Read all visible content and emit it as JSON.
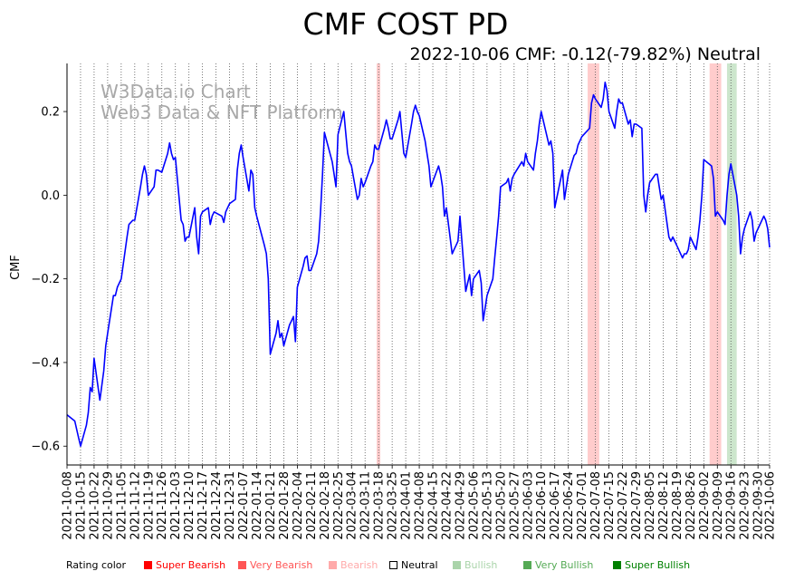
{
  "chart_data": {
    "type": "line",
    "title": "CMF COST PD",
    "subtitle": "2022-10-06 CMF: -0.12(-79.82%) Neutral",
    "ylabel": "CMF",
    "xlabel": "",
    "ylim": [
      -0.645,
      0.315
    ],
    "yticks": [
      -0.6,
      -0.4,
      -0.2,
      0.0,
      0.2
    ],
    "ytick_labels": [
      "−0.6",
      "−0.4",
      "−0.2",
      "0.0",
      "0.2"
    ],
    "date_start": "2021-10-08",
    "date_end": "2022-10-06",
    "xtick_labels": [
      "2021-10-08",
      "2021-10-15",
      "2021-10-22",
      "2021-10-29",
      "2021-11-05",
      "2021-11-12",
      "2021-11-19",
      "2021-11-26",
      "2021-12-03",
      "2021-12-10",
      "2021-12-17",
      "2021-12-24",
      "2021-12-31",
      "2022-01-07",
      "2022-01-14",
      "2022-01-21",
      "2022-01-28",
      "2022-02-04",
      "2022-02-11",
      "2022-02-18",
      "2022-02-25",
      "2022-03-04",
      "2022-03-11",
      "2022-03-18",
      "2022-03-25",
      "2022-04-01",
      "2022-04-08",
      "2022-04-15",
      "2022-04-22",
      "2022-04-29",
      "2022-05-06",
      "2022-05-13",
      "2022-05-20",
      "2022-05-27",
      "2022-06-03",
      "2022-06-10",
      "2022-06-17",
      "2022-06-24",
      "2022-07-01",
      "2022-07-08",
      "2022-07-15",
      "2022-07-22",
      "2022-07-29",
      "2022-08-05",
      "2022-08-12",
      "2022-08-19",
      "2022-08-26",
      "2022-09-02",
      "2022-09-09",
      "2022-09-16",
      "2022-09-23",
      "2022-09-30",
      "2022-10-06"
    ],
    "grid": "vertical dotted at weekly ticks",
    "series": [
      {
        "name": "CMF",
        "color": "#0000ff",
        "points": [
          [
            "2021-10-08",
            -0.525
          ],
          [
            "2021-10-12",
            -0.54
          ],
          [
            "2021-10-14",
            -0.58
          ],
          [
            "2021-10-15",
            -0.6
          ],
          [
            "2021-10-18",
            -0.55
          ],
          [
            "2021-10-19",
            -0.52
          ],
          [
            "2021-10-20",
            -0.46
          ],
          [
            "2021-10-21",
            -0.47
          ],
          [
            "2021-10-22",
            -0.39
          ],
          [
            "2021-10-25",
            -0.49
          ],
          [
            "2021-10-27",
            -0.42
          ],
          [
            "2021-10-28",
            -0.36
          ],
          [
            "2021-10-29",
            -0.33
          ],
          [
            "2021-11-01",
            -0.24
          ],
          [
            "2021-11-02",
            -0.24
          ],
          [
            "2021-11-03",
            -0.22
          ],
          [
            "2021-11-05",
            -0.2
          ],
          [
            "2021-11-08",
            -0.1
          ],
          [
            "2021-11-09",
            -0.07
          ],
          [
            "2021-11-11",
            -0.06
          ],
          [
            "2021-11-12",
            -0.06
          ],
          [
            "2021-11-15",
            0.02
          ],
          [
            "2021-11-16",
            0.05
          ],
          [
            "2021-11-17",
            0.07
          ],
          [
            "2021-11-18",
            0.05
          ],
          [
            "2021-11-19",
            0.0
          ],
          [
            "2021-11-22",
            0.02
          ],
          [
            "2021-11-23",
            0.06
          ],
          [
            "2021-11-24",
            0.06
          ],
          [
            "2021-11-26",
            0.055
          ],
          [
            "2021-11-29",
            0.1
          ],
          [
            "2021-11-30",
            0.125
          ],
          [
            "2021-12-01",
            0.1
          ],
          [
            "2021-12-02",
            0.085
          ],
          [
            "2021-12-03",
            0.09
          ],
          [
            "2021-12-06",
            -0.06
          ],
          [
            "2021-12-07",
            -0.07
          ],
          [
            "2021-12-08",
            -0.11
          ],
          [
            "2021-12-09",
            -0.1
          ],
          [
            "2021-12-10",
            -0.1
          ],
          [
            "2021-12-13",
            -0.03
          ],
          [
            "2021-12-14",
            -0.1
          ],
          [
            "2021-12-15",
            -0.14
          ],
          [
            "2021-12-16",
            -0.05
          ],
          [
            "2021-12-17",
            -0.04
          ],
          [
            "2021-12-20",
            -0.03
          ],
          [
            "2021-12-21",
            -0.07
          ],
          [
            "2021-12-22",
            -0.05
          ],
          [
            "2021-12-23",
            -0.04
          ],
          [
            "2021-12-27",
            -0.05
          ],
          [
            "2021-12-28",
            -0.065
          ],
          [
            "2021-12-29",
            -0.04
          ],
          [
            "2021-12-30",
            -0.03
          ],
          [
            "2021-12-31",
            -0.02
          ],
          [
            "2022-01-03",
            -0.01
          ],
          [
            "2022-01-04",
            0.06
          ],
          [
            "2022-01-05",
            0.1
          ],
          [
            "2022-01-06",
            0.12
          ],
          [
            "2022-01-07",
            0.09
          ],
          [
            "2022-01-10",
            0.01
          ],
          [
            "2022-01-11",
            0.06
          ],
          [
            "2022-01-12",
            0.05
          ],
          [
            "2022-01-13",
            -0.03
          ],
          [
            "2022-01-14",
            -0.05
          ],
          [
            "2022-01-18",
            -0.12
          ],
          [
            "2022-01-19",
            -0.14
          ],
          [
            "2022-01-20",
            -0.2
          ],
          [
            "2022-01-21",
            -0.38
          ],
          [
            "2022-01-24",
            -0.33
          ],
          [
            "2022-01-25",
            -0.3
          ],
          [
            "2022-01-26",
            -0.34
          ],
          [
            "2022-01-27",
            -0.33
          ],
          [
            "2022-01-28",
            -0.36
          ],
          [
            "2022-01-31",
            -0.31
          ],
          [
            "2022-02-01",
            -0.3
          ],
          [
            "2022-02-02",
            -0.29
          ],
          [
            "2022-02-03",
            -0.35
          ],
          [
            "2022-02-04",
            -0.22
          ],
          [
            "2022-02-07",
            -0.17
          ],
          [
            "2022-02-08",
            -0.15
          ],
          [
            "2022-02-09",
            -0.145
          ],
          [
            "2022-02-10",
            -0.18
          ],
          [
            "2022-02-11",
            -0.18
          ],
          [
            "2022-02-14",
            -0.14
          ],
          [
            "2022-02-15",
            -0.11
          ],
          [
            "2022-02-16",
            -0.04
          ],
          [
            "2022-02-17",
            0.05
          ],
          [
            "2022-02-18",
            0.15
          ],
          [
            "2022-02-22",
            0.08
          ],
          [
            "2022-02-23",
            0.05
          ],
          [
            "2022-02-24",
            0.02
          ],
          [
            "2022-02-25",
            0.145
          ],
          [
            "2022-02-28",
            0.2
          ],
          [
            "2022-03-01",
            0.15
          ],
          [
            "2022-03-02",
            0.1
          ],
          [
            "2022-03-03",
            0.08
          ],
          [
            "2022-03-04",
            0.07
          ],
          [
            "2022-03-07",
            -0.01
          ],
          [
            "2022-03-08",
            0.0
          ],
          [
            "2022-03-09",
            0.04
          ],
          [
            "2022-03-10",
            0.02
          ],
          [
            "2022-03-11",
            0.03
          ],
          [
            "2022-03-14",
            0.07
          ],
          [
            "2022-03-15",
            0.08
          ],
          [
            "2022-03-16",
            0.12
          ],
          [
            "2022-03-17",
            0.11
          ],
          [
            "2022-03-18",
            0.11
          ],
          [
            "2022-03-21",
            0.16
          ],
          [
            "2022-03-22",
            0.18
          ],
          [
            "2022-03-23",
            0.16
          ],
          [
            "2022-03-24",
            0.135
          ],
          [
            "2022-03-25",
            0.135
          ],
          [
            "2022-03-28",
            0.18
          ],
          [
            "2022-03-29",
            0.2
          ],
          [
            "2022-03-30",
            0.15
          ],
          [
            "2022-03-31",
            0.1
          ],
          [
            "2022-04-01",
            0.09
          ],
          [
            "2022-04-04",
            0.17
          ],
          [
            "2022-04-05",
            0.2
          ],
          [
            "2022-04-06",
            0.215
          ],
          [
            "2022-04-07",
            0.2
          ],
          [
            "2022-04-08",
            0.19
          ],
          [
            "2022-04-11",
            0.13
          ],
          [
            "2022-04-12",
            0.1
          ],
          [
            "2022-04-13",
            0.07
          ],
          [
            "2022-04-14",
            0.02
          ],
          [
            "2022-04-18",
            0.07
          ],
          [
            "2022-04-19",
            0.05
          ],
          [
            "2022-04-20",
            0.02
          ],
          [
            "2022-04-21",
            -0.05
          ],
          [
            "2022-04-22",
            -0.03
          ],
          [
            "2022-04-25",
            -0.14
          ],
          [
            "2022-04-26",
            -0.13
          ],
          [
            "2022-04-27",
            -0.12
          ],
          [
            "2022-04-28",
            -0.11
          ],
          [
            "2022-04-29",
            -0.05
          ],
          [
            "2022-05-02",
            -0.23
          ],
          [
            "2022-05-03",
            -0.21
          ],
          [
            "2022-05-04",
            -0.19
          ],
          [
            "2022-05-05",
            -0.24
          ],
          [
            "2022-05-06",
            -0.2
          ],
          [
            "2022-05-09",
            -0.18
          ],
          [
            "2022-05-10",
            -0.21
          ],
          [
            "2022-05-11",
            -0.3
          ],
          [
            "2022-05-12",
            -0.27
          ],
          [
            "2022-05-13",
            -0.24
          ],
          [
            "2022-05-16",
            -0.2
          ],
          [
            "2022-05-17",
            -0.15
          ],
          [
            "2022-05-18",
            -0.1
          ],
          [
            "2022-05-19",
            -0.05
          ],
          [
            "2022-05-20",
            0.02
          ],
          [
            "2022-05-23",
            0.03
          ],
          [
            "2022-05-24",
            0.04
          ],
          [
            "2022-05-25",
            0.01
          ],
          [
            "2022-05-26",
            0.04
          ],
          [
            "2022-05-27",
            0.05
          ],
          [
            "2022-05-31",
            0.08
          ],
          [
            "2022-06-01",
            0.07
          ],
          [
            "2022-06-02",
            0.1
          ],
          [
            "2022-06-03",
            0.08
          ],
          [
            "2022-06-06",
            0.06
          ],
          [
            "2022-06-07",
            0.1
          ],
          [
            "2022-06-08",
            0.13
          ],
          [
            "2022-06-09",
            0.17
          ],
          [
            "2022-06-10",
            0.2
          ],
          [
            "2022-06-13",
            0.14
          ],
          [
            "2022-06-14",
            0.12
          ],
          [
            "2022-06-15",
            0.13
          ],
          [
            "2022-06-16",
            0.1
          ],
          [
            "2022-06-17",
            -0.03
          ],
          [
            "2022-06-21",
            0.06
          ],
          [
            "2022-06-22",
            -0.01
          ],
          [
            "2022-06-23",
            0.02
          ],
          [
            "2022-06-24",
            0.05
          ],
          [
            "2022-06-27",
            0.095
          ],
          [
            "2022-06-28",
            0.1
          ],
          [
            "2022-06-29",
            0.12
          ],
          [
            "2022-06-30",
            0.13
          ],
          [
            "2022-07-01",
            0.14
          ],
          [
            "2022-07-05",
            0.16
          ],
          [
            "2022-07-06",
            0.22
          ],
          [
            "2022-07-07",
            0.24
          ],
          [
            "2022-07-08",
            0.23
          ],
          [
            "2022-07-11",
            0.21
          ],
          [
            "2022-07-12",
            0.23
          ],
          [
            "2022-07-13",
            0.27
          ],
          [
            "2022-07-14",
            0.25
          ],
          [
            "2022-07-15",
            0.2
          ],
          [
            "2022-07-18",
            0.16
          ],
          [
            "2022-07-19",
            0.2
          ],
          [
            "2022-07-20",
            0.23
          ],
          [
            "2022-07-21",
            0.22
          ],
          [
            "2022-07-22",
            0.22
          ],
          [
            "2022-07-25",
            0.17
          ],
          [
            "2022-07-26",
            0.18
          ],
          [
            "2022-07-27",
            0.14
          ],
          [
            "2022-07-28",
            0.17
          ],
          [
            "2022-07-29",
            0.17
          ],
          [
            "2022-08-01",
            0.16
          ],
          [
            "2022-08-02",
            0.0
          ],
          [
            "2022-08-03",
            -0.04
          ],
          [
            "2022-08-04",
            0.0
          ],
          [
            "2022-08-05",
            0.03
          ],
          [
            "2022-08-08",
            0.05
          ],
          [
            "2022-08-09",
            0.05
          ],
          [
            "2022-08-10",
            0.02
          ],
          [
            "2022-08-11",
            -0.01
          ],
          [
            "2022-08-12",
            0.0
          ],
          [
            "2022-08-15",
            -0.1
          ],
          [
            "2022-08-16",
            -0.11
          ],
          [
            "2022-08-17",
            -0.1
          ],
          [
            "2022-08-18",
            -0.11
          ],
          [
            "2022-08-19",
            -0.12
          ],
          [
            "2022-08-22",
            -0.15
          ],
          [
            "2022-08-23",
            -0.14
          ],
          [
            "2022-08-24",
            -0.14
          ],
          [
            "2022-08-25",
            -0.13
          ],
          [
            "2022-08-26",
            -0.1
          ],
          [
            "2022-08-29",
            -0.13
          ],
          [
            "2022-08-30",
            -0.1
          ],
          [
            "2022-08-31",
            -0.06
          ],
          [
            "2022-09-01",
            0.0
          ],
          [
            "2022-09-02",
            0.085
          ],
          [
            "2022-09-06",
            0.07
          ],
          [
            "2022-09-07",
            0.04
          ],
          [
            "2022-09-08",
            -0.05
          ],
          [
            "2022-09-09",
            -0.04
          ],
          [
            "2022-09-12",
            -0.06
          ],
          [
            "2022-09-13",
            -0.07
          ],
          [
            "2022-09-14",
            0.0
          ],
          [
            "2022-09-15",
            0.05
          ],
          [
            "2022-09-16",
            0.075
          ],
          [
            "2022-09-19",
            0.0
          ],
          [
            "2022-09-20",
            -0.05
          ],
          [
            "2022-09-21",
            -0.14
          ],
          [
            "2022-09-22",
            -0.1
          ],
          [
            "2022-09-23",
            -0.08
          ],
          [
            "2022-09-26",
            -0.04
          ],
          [
            "2022-09-27",
            -0.06
          ],
          [
            "2022-09-28",
            -0.11
          ],
          [
            "2022-09-29",
            -0.09
          ],
          [
            "2022-09-30",
            -0.08
          ],
          [
            "2022-10-03",
            -0.05
          ],
          [
            "2022-10-04",
            -0.06
          ],
          [
            "2022-10-05",
            -0.08
          ],
          [
            "2022-10-06",
            -0.125
          ]
        ]
      }
    ],
    "shaded_regions": [
      {
        "start": "2022-03-17",
        "end": "2022-03-18",
        "rating": "Bearish",
        "color": "#ffcccc"
      },
      {
        "start": "2022-07-04",
        "end": "2022-07-10",
        "rating": "Bearish",
        "color": "#ffcccc"
      },
      {
        "start": "2022-09-05",
        "end": "2022-09-11",
        "rating": "Bearish",
        "color": "#ffcccc"
      },
      {
        "start": "2022-09-14",
        "end": "2022-09-19",
        "rating": "Bullish",
        "color": "#cce6cc"
      }
    ],
    "watermark": [
      "W3Data.io Chart",
      "Web3 Data & NFT Platform"
    ]
  },
  "legend": {
    "label": "Rating color",
    "items": [
      {
        "label": "Super Bearish",
        "color": "#ff0000"
      },
      {
        "label": "Very Bearish",
        "color": "#ff5555"
      },
      {
        "label": "Bearish",
        "color": "#ffaaaa"
      },
      {
        "label": "Neutral",
        "color": "#ffffff"
      },
      {
        "label": "Bullish",
        "color": "#aad4aa"
      },
      {
        "label": "Very Bullish",
        "color": "#55aa55"
      },
      {
        "label": "Super Bullish",
        "color": "#008000"
      }
    ]
  }
}
